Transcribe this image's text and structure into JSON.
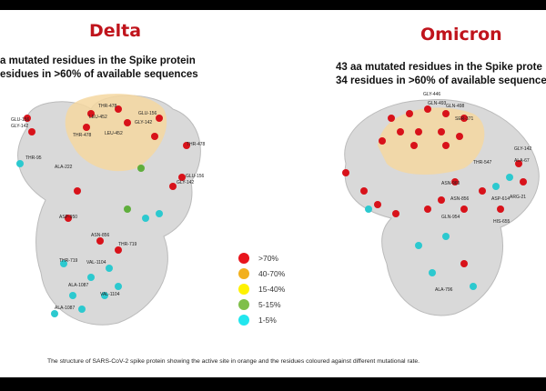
{
  "panels": {
    "delta": {
      "title": "Delta",
      "line1": "a mutated residues in the Spike protein",
      "line2": "esidues in >60% of available sequences",
      "residue_labels": [
        "GLU-156",
        "GLY-142",
        "THR-478",
        "LEU-452",
        "GLU-156",
        "GLY-142",
        "LEU-452",
        "THR-478",
        "THR-478",
        "THR-95",
        "ALA-222",
        "GLU-156",
        "GLY-142",
        "ASP-950",
        "ASN-856",
        "THR-719",
        "THR-719",
        "VAL-1104",
        "ALA-1087",
        "VAL-1104",
        "ALA-1087"
      ]
    },
    "omicron": {
      "title": "Omicron",
      "line1": "43 aa mutated residues in the Spike prote",
      "line2": "34 residues in >60% of available sequence",
      "residue_labels": [
        "GLY-446",
        "GLN-493",
        "GLN-498",
        "SER-371",
        "THR-547",
        "ASN-969",
        "ASN-856",
        "GLN-954",
        "ASP-614",
        "HIS-655",
        "ARG-21",
        "ALA-796",
        "GLY-142",
        "ALA-67"
      ]
    }
  },
  "legend": [
    {
      "label": ">70%",
      "color": "#e8141c"
    },
    {
      "label": "40-70%",
      "color": "#f2b01e"
    },
    {
      "label": "15-40%",
      "color": "#fff200"
    },
    {
      "label": "5-15%",
      "color": "#7fbf4a"
    },
    {
      "label": "1-5%",
      "color": "#22e6ee"
    }
  ],
  "caption": "The structure of SARS-CoV-2 spike protein showing the active site in orange and the residues coloured against different mutational rate."
}
